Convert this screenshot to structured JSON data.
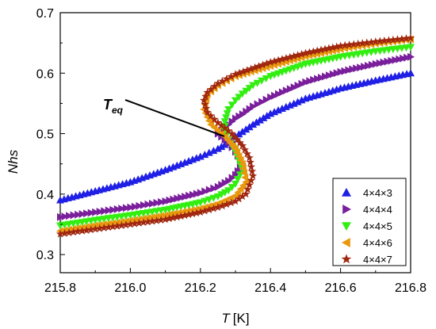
{
  "chart_data": {
    "type": "scatter",
    "xlabel_italic": "T",
    "xlabel_unit": "[K]",
    "ylabel": "Nhs",
    "xlim": [
      215.8,
      216.8
    ],
    "ylim": [
      0.27,
      0.7
    ],
    "xticks": [
      "215.8",
      "216.0",
      "216.2",
      "216.4",
      "216.6",
      "216.8"
    ],
    "yticks": [
      "0.3",
      "0.4",
      "0.5",
      "0.6",
      "0.7"
    ],
    "annotation": {
      "main": "T",
      "sub": "eq"
    },
    "legend_position": "bottom-right",
    "series": [
      {
        "name": "4×4×3",
        "marker": "triangle-up",
        "color": "#1f1fe6",
        "x": [
          215.8,
          215.9,
          216.0,
          216.1,
          216.2,
          216.25,
          216.28,
          216.3,
          216.35,
          216.4,
          216.5,
          216.6,
          216.7,
          216.8
        ],
        "y": [
          0.39,
          0.405,
          0.42,
          0.44,
          0.462,
          0.475,
          0.485,
          0.495,
          0.515,
          0.533,
          0.558,
          0.575,
          0.588,
          0.6
        ]
      },
      {
        "name": "4×4×4",
        "marker": "triangle-right",
        "color": "#7a1f9c",
        "x": [
          215.8,
          215.9,
          216.0,
          216.1,
          216.2,
          216.25,
          216.28,
          216.3,
          216.32,
          216.3,
          216.28,
          216.25,
          216.28,
          216.3,
          216.32,
          216.35,
          216.4,
          216.5,
          216.6,
          216.7,
          216.8
        ],
        "y": [
          0.362,
          0.37,
          0.378,
          0.388,
          0.402,
          0.412,
          0.422,
          0.432,
          0.45,
          0.47,
          0.485,
          0.5,
          0.515,
          0.525,
          0.532,
          0.545,
          0.56,
          0.585,
          0.602,
          0.615,
          0.627
        ]
      },
      {
        "name": "4×4×5",
        "marker": "triangle-down",
        "color": "#33ee11",
        "x": [
          215.8,
          215.9,
          216.0,
          216.1,
          216.2,
          216.25,
          216.28,
          216.3,
          216.32,
          216.3,
          216.28,
          216.27,
          216.27,
          216.28,
          216.3,
          216.32,
          216.35,
          216.4,
          216.5,
          216.6,
          216.7,
          216.8
        ],
        "y": [
          0.348,
          0.357,
          0.365,
          0.374,
          0.386,
          0.396,
          0.406,
          0.417,
          0.44,
          0.47,
          0.49,
          0.505,
          0.52,
          0.54,
          0.555,
          0.566,
          0.58,
          0.595,
          0.615,
          0.627,
          0.636,
          0.643
        ]
      },
      {
        "name": "4×4×6",
        "marker": "triangle-left",
        "color": "#e8980e",
        "x": [
          215.8,
          215.9,
          216.0,
          216.1,
          216.2,
          216.25,
          216.3,
          216.33,
          216.32,
          216.3,
          216.27,
          216.23,
          216.21,
          216.22,
          216.25,
          216.3,
          216.4,
          216.5,
          216.6,
          216.7,
          216.8
        ],
        "y": [
          0.339,
          0.348,
          0.356,
          0.365,
          0.376,
          0.384,
          0.397,
          0.42,
          0.45,
          0.475,
          0.495,
          0.515,
          0.54,
          0.565,
          0.58,
          0.595,
          0.612,
          0.628,
          0.64,
          0.649,
          0.656
        ]
      },
      {
        "name": "4×4×7",
        "marker": "star",
        "color": "#a0260f",
        "x": [
          215.8,
          215.9,
          216.0,
          216.1,
          216.2,
          216.25,
          216.3,
          216.33,
          216.35,
          216.34,
          216.32,
          216.29,
          216.25,
          216.22,
          216.21,
          216.22,
          216.25,
          216.3,
          216.4,
          216.5,
          216.6,
          216.7,
          216.8
        ],
        "y": [
          0.334,
          0.342,
          0.35,
          0.358,
          0.37,
          0.378,
          0.388,
          0.4,
          0.43,
          0.46,
          0.48,
          0.5,
          0.518,
          0.535,
          0.555,
          0.568,
          0.583,
          0.598,
          0.618,
          0.633,
          0.645,
          0.652,
          0.658
        ]
      }
    ]
  }
}
